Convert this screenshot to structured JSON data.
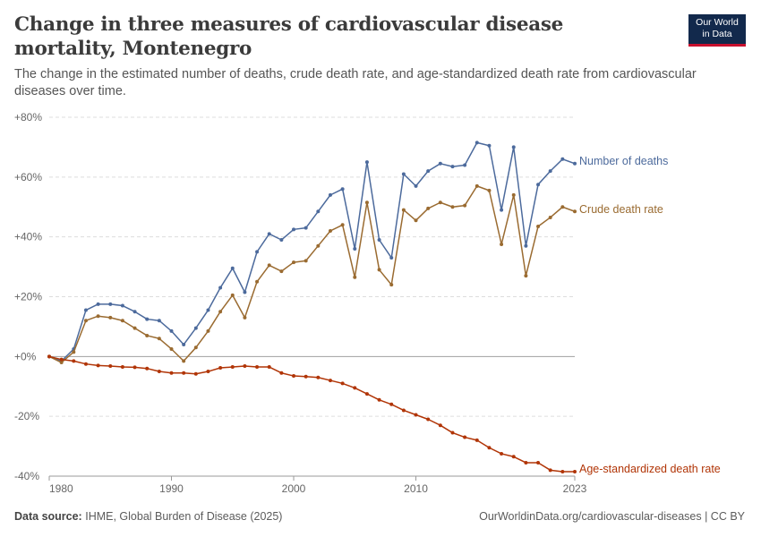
{
  "header": {
    "title": "Change in three measures of cardiovascular disease mortality, Montenegro",
    "subtitle": "The change in the estimated number of deaths, crude death rate, and age-standardized death rate from cardiovascular diseases over time.",
    "logo_line1": "Our World",
    "logo_line2": "in Data"
  },
  "footer": {
    "source_label": "Data source:",
    "source_text": "IHME, Global Burden of Disease (2025)",
    "url": "OurWorldinData.org/cardiovascular-diseases | CC BY"
  },
  "colors": {
    "number_of_deaths": "#4c6a9c",
    "crude_death_rate": "#9a6b31",
    "age_standardized": "#b13507",
    "grid": "#dddddd",
    "zero_line": "#a1a1a1"
  },
  "chart_data": {
    "type": "line",
    "title": "Change in three measures of cardiovascular disease mortality, Montenegro",
    "xlabel": "",
    "ylabel": "",
    "ylim": [
      -40,
      80
    ],
    "xlim": [
      1980,
      2023
    ],
    "grid": "horizontal dashed",
    "y_ticks": [
      {
        "value": 80,
        "label": "+80%"
      },
      {
        "value": 60,
        "label": "+60%"
      },
      {
        "value": 40,
        "label": "+40%"
      },
      {
        "value": 20,
        "label": "+20%"
      },
      {
        "value": 0,
        "label": "+0%"
      },
      {
        "value": -20,
        "label": "-20%"
      },
      {
        "value": -40,
        "label": "-40%"
      }
    ],
    "x_ticks": [
      {
        "value": 1980,
        "label": "1980"
      },
      {
        "value": 1990,
        "label": "1990"
      },
      {
        "value": 2000,
        "label": "2000"
      },
      {
        "value": 2010,
        "label": "2010"
      },
      {
        "value": 2023,
        "label": "2023"
      }
    ],
    "x": [
      1980,
      1981,
      1982,
      1983,
      1984,
      1985,
      1986,
      1987,
      1988,
      1989,
      1990,
      1991,
      1992,
      1993,
      1994,
      1995,
      1996,
      1997,
      1998,
      1999,
      2000,
      2001,
      2002,
      2003,
      2004,
      2005,
      2006,
      2007,
      2008,
      2009,
      2010,
      2011,
      2012,
      2013,
      2014,
      2015,
      2016,
      2017,
      2018,
      2019,
      2020,
      2021,
      2022,
      2023
    ],
    "series": [
      {
        "name": "Number of deaths",
        "color": "#4c6a9c",
        "values": [
          0,
          -1.5,
          2.5,
          15.5,
          17.5,
          17.5,
          17,
          15,
          12.5,
          12,
          8.5,
          4,
          9.5,
          15.5,
          23,
          29.5,
          21.5,
          35,
          41,
          39,
          42.5,
          43,
          48.5,
          54,
          56,
          36,
          65,
          39,
          33,
          61,
          57,
          62,
          64.5,
          63.5,
          64,
          71.5,
          70.5,
          49,
          70,
          37,
          57.5,
          62,
          66,
          64.5
        ]
      },
      {
        "name": "Crude death rate",
        "color": "#9a6b31",
        "values": [
          0,
          -2,
          1.5,
          12,
          13.5,
          13,
          12,
          9.5,
          7,
          6,
          2.5,
          -1.5,
          3,
          8.5,
          15,
          20.5,
          13,
          25,
          30.5,
          28.5,
          31.5,
          32,
          37,
          42,
          44,
          26.5,
          51.5,
          29,
          24,
          49,
          45.5,
          49.5,
          51.5,
          50,
          50.5,
          57,
          55.5,
          37.5,
          54,
          27,
          43.5,
          46.5,
          50,
          48.5
        ]
      },
      {
        "name": "Age-standardized death rate",
        "color": "#b13507",
        "values": [
          0,
          -1,
          -1.5,
          -2.5,
          -3,
          -3.2,
          -3.5,
          -3.6,
          -4,
          -5,
          -5.5,
          -5.5,
          -5.8,
          -5,
          -3.8,
          -3.5,
          -3.2,
          -3.5,
          -3.5,
          -5.5,
          -6.5,
          -6.7,
          -7,
          -8,
          -9,
          -10.5,
          -12.5,
          -14.5,
          -16,
          -18,
          -19.5,
          -21,
          -23,
          -25.5,
          -27,
          -28,
          -30.5,
          -32.5,
          -33.5,
          -35.5,
          -35.5,
          -38,
          -38.5,
          -38.5
        ]
      }
    ]
  }
}
